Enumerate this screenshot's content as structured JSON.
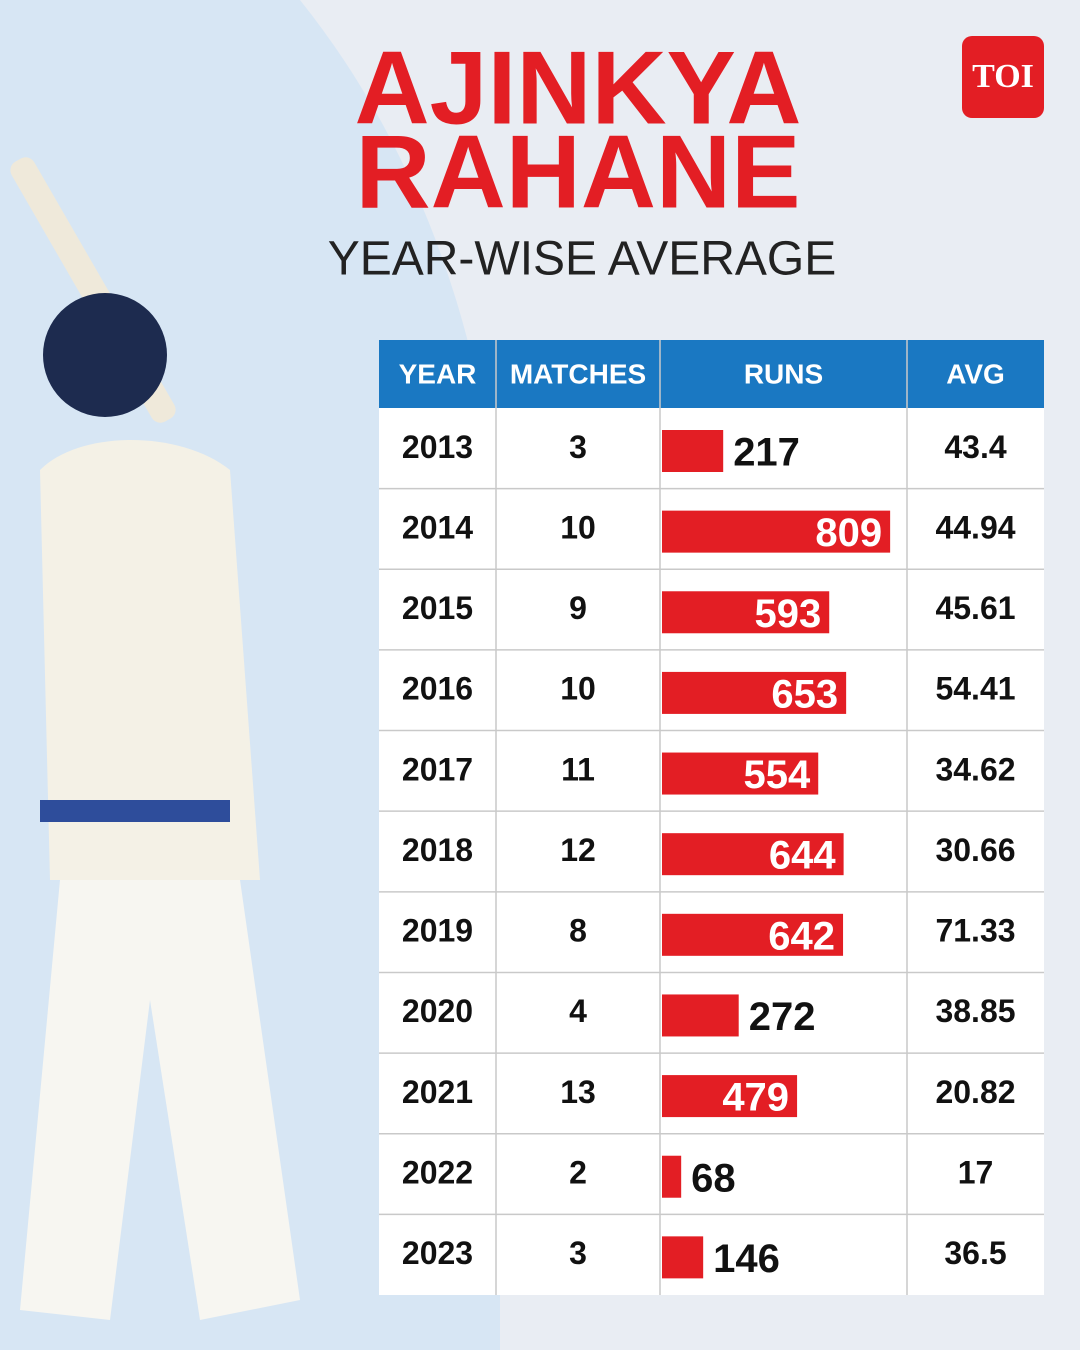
{
  "header": {
    "title_line1": "AJINKYA",
    "title_line2": "RAHANE",
    "subtitle": "YEAR-WISE AVERAGE",
    "logo": "TOI"
  },
  "table": {
    "columns": [
      "YEAR",
      "MATCHES",
      "RUNS",
      "AVG"
    ],
    "rows": [
      [
        2013,
        3,
        217,
        43.4
      ],
      [
        2014,
        10,
        809,
        44.94
      ],
      [
        2015,
        9,
        593,
        45.61
      ],
      [
        2016,
        10,
        653,
        54.41
      ],
      [
        2017,
        11,
        554,
        34.62
      ],
      [
        2018,
        12,
        644,
        30.66
      ],
      [
        2019,
        8,
        642,
        71.33
      ],
      [
        2020,
        4,
        272,
        38.85
      ],
      [
        2021,
        13,
        479,
        20.82
      ],
      [
        2022,
        2,
        68,
        17
      ],
      [
        2023,
        3,
        146,
        36.5
      ]
    ]
  }
}
